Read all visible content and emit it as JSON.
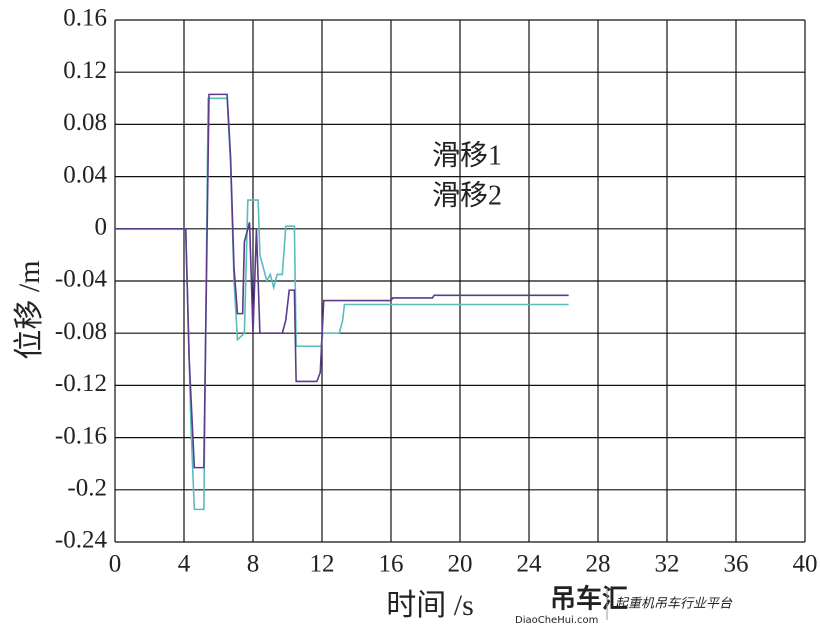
{
  "chart_data": {
    "type": "line",
    "xlabel": "时间 /s",
    "ylabel": "位移 /m",
    "xlim": [
      0,
      40
    ],
    "xticks": [
      0,
      4,
      8,
      12,
      16,
      20,
      24,
      28,
      32,
      36,
      40
    ],
    "ylim": [
      -0.24,
      0.16
    ],
    "yticks": [
      0.16,
      0.12,
      0.08,
      0.04,
      0,
      -0.04,
      -0.08,
      -0.12,
      -0.16,
      -0.2,
      -0.24
    ],
    "grid": true,
    "series": [
      {
        "name": "滑移1",
        "color": "#5b3b8c",
        "x": [
          0,
          4.1,
          4.3,
          4.6,
          5.15,
          5.45,
          6.5,
          6.7,
          6.9,
          7.1,
          7.4,
          7.5,
          7.8,
          8.0,
          8.2,
          8.4,
          9.7,
          9.9,
          10.1,
          10.4,
          10.5,
          11.7,
          11.9,
          12.1,
          16,
          16.1,
          18.4,
          18.5,
          26.3
        ],
        "values": [
          0,
          0,
          -0.1,
          -0.183,
          -0.183,
          0.103,
          0.103,
          0.055,
          -0.03,
          -0.065,
          -0.065,
          -0.01,
          0.005,
          -0.08,
          0.0,
          -0.08,
          -0.08,
          -0.07,
          -0.047,
          -0.047,
          -0.117,
          -0.117,
          -0.11,
          -0.055,
          -0.055,
          -0.053,
          -0.053,
          -0.051,
          -0.051
        ]
      },
      {
        "name": "滑移2",
        "color": "#5bbcbc",
        "x": [
          0,
          4.1,
          4.4,
          4.6,
          5.15,
          5.4,
          6.5,
          6.7,
          6.9,
          7.1,
          7.5,
          7.7,
          8.3,
          8.4,
          8.8,
          9.0,
          9.2,
          9.4,
          9.7,
          9.9,
          10.4,
          10.5,
          11.95,
          12.05,
          13.0,
          13.2,
          13.3,
          26.3
        ],
        "values": [
          0,
          0,
          -0.15,
          -0.215,
          -0.215,
          0.1,
          0.1,
          0.05,
          -0.04,
          -0.085,
          -0.08,
          0.022,
          0.022,
          -0.02,
          -0.04,
          -0.035,
          -0.045,
          -0.035,
          -0.035,
          0.002,
          0.002,
          -0.09,
          -0.09,
          -0.08,
          -0.08,
          -0.07,
          -0.058,
          -0.058
        ]
      }
    ]
  },
  "watermark": {
    "brand": "吊车汇",
    "site": "DiaoCheHui.com",
    "slogan": "起重机吊车行业平台"
  }
}
